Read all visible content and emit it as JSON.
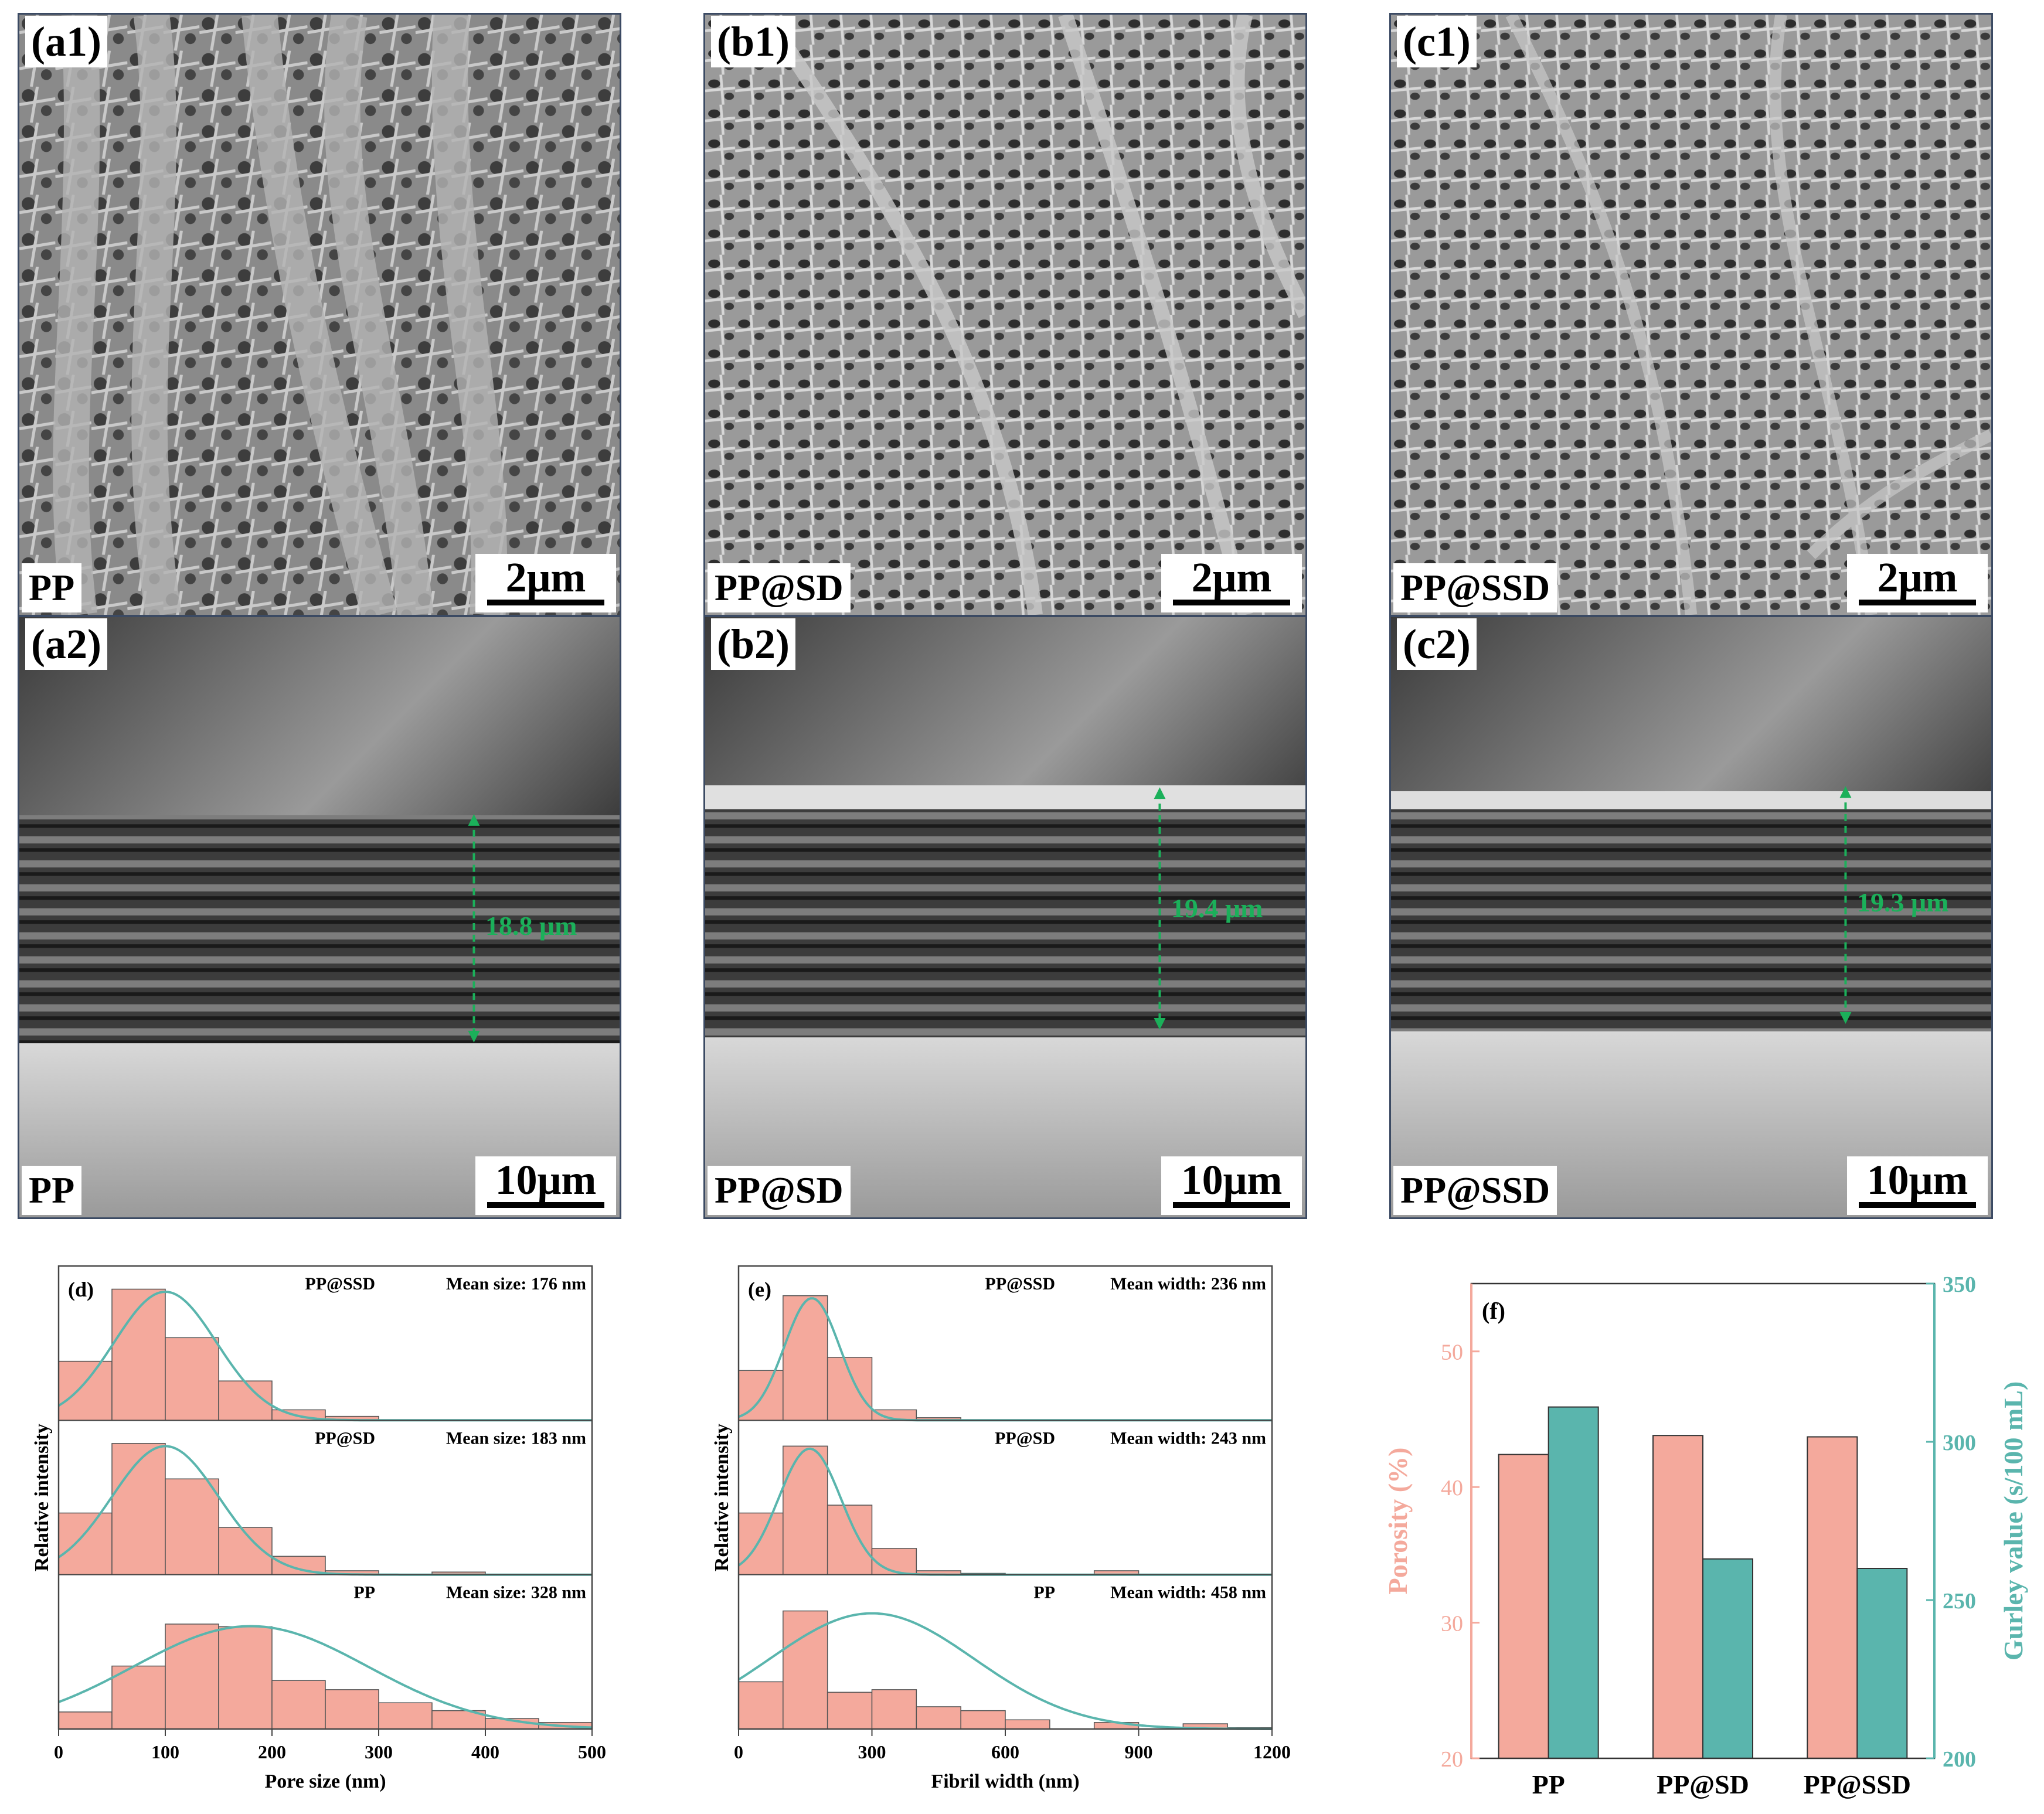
{
  "colors": {
    "bar": "#f4a99c",
    "curve": "#5ab5ad",
    "porosity": "#f4a99c",
    "gurley": "#5ab5ad",
    "frame": "#3b4a63",
    "arrow": "#1bb05a"
  },
  "panels_top": [
    {
      "label": "(a1)",
      "sample": "PP",
      "scale": "2μm"
    },
    {
      "label": "(b1)",
      "sample": "PP@SD",
      "scale": "2μm"
    },
    {
      "label": "(c1)",
      "sample": "PP@SSD",
      "scale": "2μm"
    }
  ],
  "panels_mid": [
    {
      "label": "(a2)",
      "sample": "PP",
      "scale": "10μm",
      "thickness": "18.8 μm"
    },
    {
      "label": "(b2)",
      "sample": "PP@SD",
      "scale": "10μm",
      "thickness": "19.4 μm"
    },
    {
      "label": "(c2)",
      "sample": "PP@SSD",
      "scale": "10μm",
      "thickness": "19.3 μm"
    }
  ],
  "chart_data": [
    {
      "type": "histogram",
      "panel": "(d)",
      "xlabel": "Pore size (nm)",
      "ylabel": "Relative intensity",
      "xlim": [
        0,
        500
      ],
      "xticks": [
        0,
        100,
        200,
        300,
        400,
        500
      ],
      "bin_width": 50,
      "series": [
        {
          "name": "PP@SSD",
          "annotation": "Mean size: 176 nm",
          "counts": [
            0.45,
            1.0,
            0.63,
            0.3,
            0.08,
            0.03,
            0,
            0,
            0,
            0
          ],
          "fit_mean": 100,
          "fit_sd": 48
        },
        {
          "name": "PP@SD",
          "annotation": "Mean size: 183 nm",
          "counts": [
            0.47,
            1.0,
            0.73,
            0.36,
            0.14,
            0.03,
            0,
            0.02,
            0,
            0
          ],
          "fit_mean": 100,
          "fit_sd": 50
        },
        {
          "name": "PP",
          "annotation": "Mean size: 328 nm",
          "counts": [
            0.13,
            0.48,
            0.8,
            0.78,
            0.37,
            0.3,
            0.2,
            0.14,
            0.08,
            0.05
          ],
          "fit_mean": 180,
          "fit_sd": 110
        }
      ]
    },
    {
      "type": "histogram",
      "panel": "(e)",
      "xlabel": "Fibril width (nm)",
      "ylabel": "Relative intensity",
      "xlim": [
        0,
        1200
      ],
      "xticks": [
        0,
        300,
        600,
        900,
        1200
      ],
      "bin_width": 100,
      "series": [
        {
          "name": "PP@SSD",
          "annotation": "Mean width: 236 nm",
          "counts": [
            0.38,
            0.95,
            0.48,
            0.08,
            0.02,
            0,
            0,
            0,
            0,
            0,
            0,
            0
          ],
          "fit_mean": 165,
          "fit_sd": 62
        },
        {
          "name": "PP@SD",
          "annotation": "Mean width: 243 nm",
          "counts": [
            0.47,
            0.98,
            0.53,
            0.2,
            0.03,
            0.01,
            0,
            0,
            0.03,
            0,
            0,
            0
          ],
          "fit_mean": 160,
          "fit_sd": 70
        },
        {
          "name": "PP",
          "annotation": "Mean width: 458 nm",
          "counts": [
            0.36,
            0.9,
            0.28,
            0.3,
            0.17,
            0.14,
            0.07,
            0,
            0.05,
            0,
            0.04,
            0.01
          ],
          "fit_mean": 300,
          "fit_sd": 230
        }
      ]
    },
    {
      "type": "bar",
      "panel": "(f)",
      "categories": [
        "PP",
        "PP@SD",
        "PP@SSD"
      ],
      "ylabel_left": "Porosity (%)",
      "ylabel_right": "Gurley value (s/100 mL)",
      "ylim_left": [
        20,
        55
      ],
      "yticks_left": [
        20,
        30,
        40,
        50
      ],
      "ylim_right": [
        200,
        350
      ],
      "yticks_right": [
        200,
        250,
        300,
        350
      ],
      "series": [
        {
          "name": "Porosity (%)",
          "axis": "left",
          "values": [
            42.4,
            43.8,
            43.7
          ]
        },
        {
          "name": "Gurley value (s/100 mL)",
          "axis": "right",
          "values": [
            311,
            263,
            260
          ]
        }
      ]
    }
  ]
}
